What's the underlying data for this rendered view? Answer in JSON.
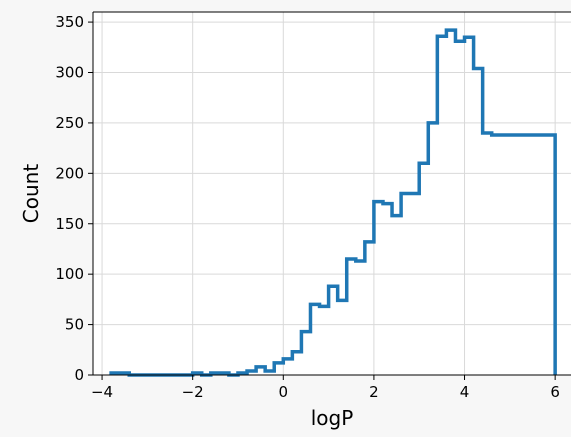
{
  "chart_data": {
    "type": "histogram",
    "xlabel": "logP",
    "ylabel": "Count",
    "xlim": [
      -4.2,
      6.35
    ],
    "ylim": [
      0,
      360
    ],
    "grid": true,
    "line_color": "#1f77b4",
    "x_ticks": [
      -4,
      -2,
      0,
      2,
      4,
      6
    ],
    "x_tick_labels": [
      "−4",
      "−2",
      "0",
      "2",
      "4",
      "6"
    ],
    "y_ticks": [
      0,
      50,
      100,
      150,
      200,
      250,
      300,
      350
    ],
    "y_tick_labels": [
      "0",
      "50",
      "100",
      "150",
      "200",
      "250",
      "300",
      "350"
    ],
    "bin_edges": [
      -3.8,
      -3.6,
      -3.4,
      -3.2,
      -3.0,
      -2.8,
      -2.6,
      -2.4,
      -2.2,
      -2.0,
      -1.8,
      -1.6,
      -1.4,
      -1.2,
      -1.0,
      -0.8,
      -0.6,
      -0.4,
      -0.2,
      0.0,
      0.2,
      0.4,
      0.6,
      0.8,
      1.0,
      1.2,
      1.4,
      1.6,
      1.8,
      2.0,
      2.2,
      2.4,
      2.6,
      2.8,
      3.0,
      3.2,
      3.4,
      3.6,
      3.8,
      4.0,
      4.2,
      4.4,
      4.6,
      4.8,
      5.0,
      5.2,
      5.4,
      5.6,
      5.8,
      6.0
    ],
    "counts": [
      2,
      2,
      0,
      0,
      0,
      0,
      0,
      0,
      0,
      2,
      0,
      2,
      2,
      0,
      2,
      4,
      8,
      4,
      12,
      16,
      23,
      43,
      70,
      68,
      88,
      74,
      115,
      113,
      132,
      172,
      170,
      158,
      180,
      180,
      210,
      250,
      336,
      342,
      331,
      335,
      304,
      240,
      238,
      238,
      238,
      238,
      238,
      238,
      238
    ]
  }
}
